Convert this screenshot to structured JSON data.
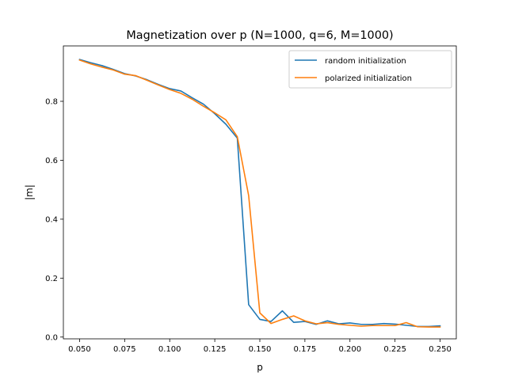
{
  "chart_data": {
    "type": "line",
    "title": "Magnetization over p (N=1000, q=6, M=1000)",
    "xlabel": "p",
    "ylabel": "|m|",
    "xlim": [
      0.041,
      0.259
    ],
    "ylim": [
      -0.006,
      0.988
    ],
    "xticks": [
      "0.050",
      "0.075",
      "0.100",
      "0.125",
      "0.150",
      "0.175",
      "0.200",
      "0.225",
      "0.250"
    ],
    "yticks": [
      "0.0",
      "0.2",
      "0.4",
      "0.6",
      "0.8"
    ],
    "grid": false,
    "legend_position": "upper right",
    "x": [
      0.05,
      0.0562,
      0.0625,
      0.0688,
      0.075,
      0.0812,
      0.0875,
      0.0938,
      0.1,
      0.1062,
      0.1125,
      0.1188,
      0.125,
      0.1312,
      0.1375,
      0.1438,
      0.15,
      0.1562,
      0.1625,
      0.1688,
      0.175,
      0.1812,
      0.1875,
      0.1938,
      0.2,
      0.2062,
      0.2125,
      0.2188,
      0.225,
      0.2312,
      0.2375,
      0.2438,
      0.25
    ],
    "series": [
      {
        "name": "random initialization",
        "color": "#1f77b4",
        "values": [
          0.942,
          0.931,
          0.921,
          0.908,
          0.894,
          0.886,
          0.873,
          0.857,
          0.843,
          0.835,
          0.812,
          0.79,
          0.758,
          0.722,
          0.675,
          0.11,
          0.06,
          0.053,
          0.089,
          0.05,
          0.053,
          0.043,
          0.055,
          0.045,
          0.048,
          0.043,
          0.043,
          0.046,
          0.044,
          0.04,
          0.036,
          0.036,
          0.038
        ]
      },
      {
        "name": "polarized initialization",
        "color": "#ff7f0e",
        "values": [
          0.94,
          0.927,
          0.916,
          0.906,
          0.892,
          0.887,
          0.871,
          0.855,
          0.84,
          0.827,
          0.807,
          0.783,
          0.761,
          0.737,
          0.68,
          0.48,
          0.082,
          0.046,
          0.06,
          0.072,
          0.055,
          0.045,
          0.049,
          0.043,
          0.04,
          0.037,
          0.039,
          0.039,
          0.039,
          0.049,
          0.035,
          0.034,
          0.034
        ]
      }
    ]
  }
}
